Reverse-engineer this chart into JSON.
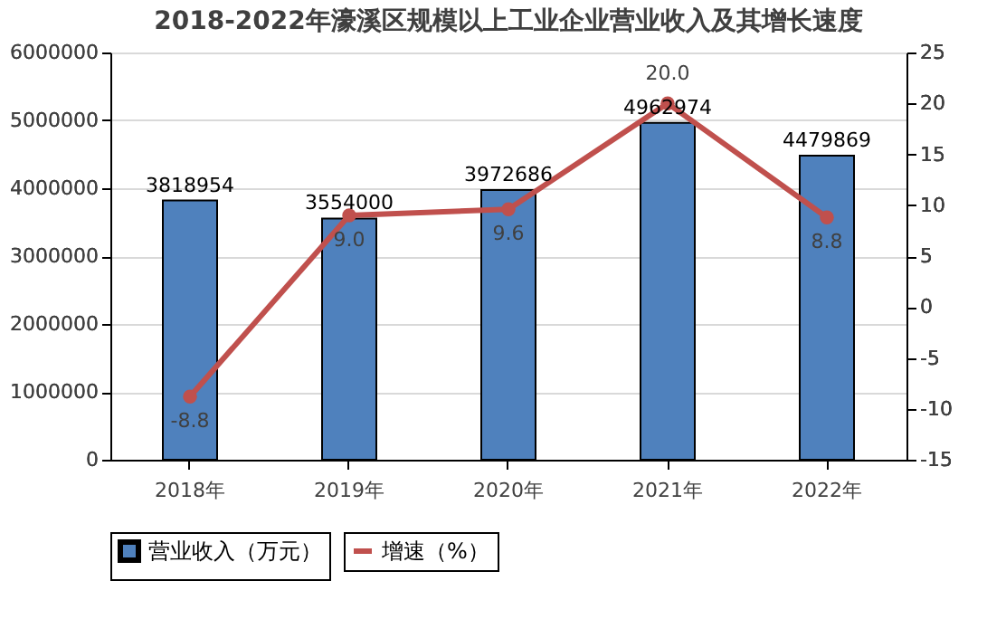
{
  "chart_data": {
    "type": "bar",
    "title": "2018-2022年濠溪区规模以上工业企业营业收入及其增长速度",
    "categories": [
      "2018年",
      "2019年",
      "2020年",
      "2021年",
      "2022年"
    ],
    "series": [
      {
        "name": "营业收入（万元）",
        "type": "bar",
        "color": "#4f81bd",
        "values": [
          3818954,
          3554000,
          3972686,
          4962974,
          4479869
        ]
      },
      {
        "name": "增速（%）",
        "type": "line",
        "axis": "y2",
        "color": "#c0504d",
        "values": [
          -8.8,
          9.0,
          9.6,
          20.0,
          8.8
        ],
        "value_labels": [
          "-8.8",
          "9.0",
          "9.6",
          "20.0",
          "8.8"
        ]
      }
    ],
    "ylim": [
      0,
      6000000
    ],
    "yticks": [
      0,
      1000000,
      2000000,
      3000000,
      4000000,
      5000000,
      6000000
    ],
    "y2lim": [
      -15,
      25
    ],
    "y2ticks": [
      -15,
      -10,
      -5,
      0,
      5,
      10,
      15,
      20,
      25
    ],
    "data_labels": true,
    "grid": "y",
    "legend": "bottom",
    "marker": "circle",
    "line_style": "solid"
  }
}
